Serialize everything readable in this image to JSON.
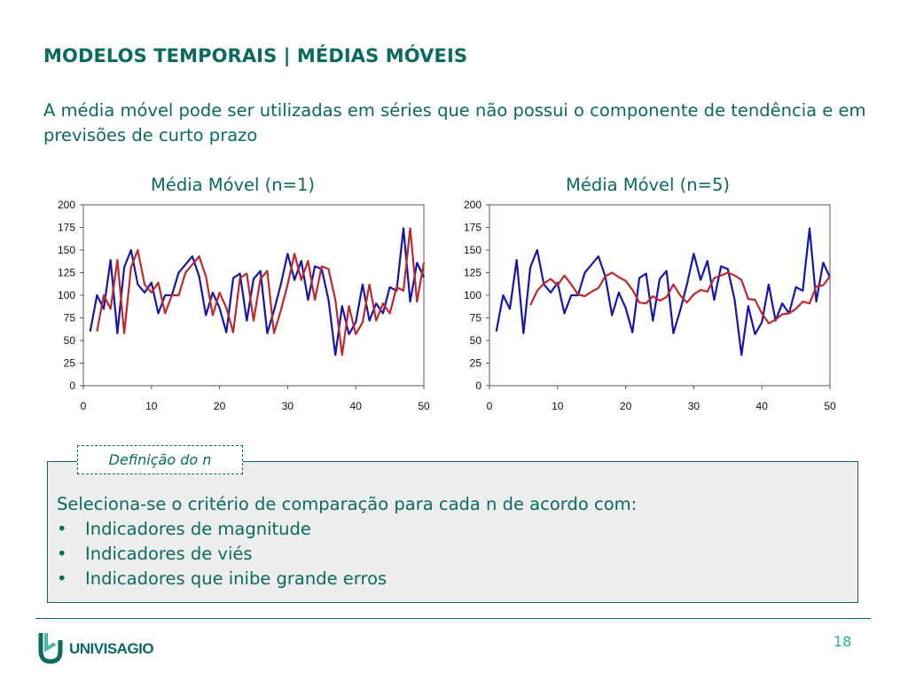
{
  "slide": {
    "title": "MODELOS TEMPORAIS | MÉDIAS MÓVEIS",
    "subtitle": "A média móvel pode ser utilizadas em séries que não possui o componente de tendência e em previsões de curto prazo",
    "page_number": "18",
    "colors": {
      "accent": "#0b6a5e",
      "page_number": "#2aa89a",
      "box_bg": "#eeeeee"
    }
  },
  "definition": {
    "tag": "Definição do n",
    "intro": "Seleciona-se o critério de comparação para cada n de acordo com:",
    "bullet_symbol": "•",
    "items": [
      "Indicadores de magnitude",
      "Indicadores de viés",
      "Indicadores que inibe grande erros"
    ]
  },
  "logo": {
    "text": "UNIVISAGIO",
    "icon": "univisagio-logo-icon"
  },
  "chart_data": [
    {
      "type": "line",
      "title": "Média Móvel (n=1)",
      "xlabel": "",
      "ylabel": "",
      "xlim": [
        0,
        50
      ],
      "ylim": [
        0,
        200
      ],
      "xticks": [
        0,
        10,
        20,
        30,
        40,
        50
      ],
      "yticks": [
        0,
        25,
        50,
        75,
        100,
        125,
        150,
        175,
        200
      ],
      "grid": false,
      "series": [
        {
          "color": "#1515b0",
          "x": [
            1,
            2,
            3,
            4,
            5,
            6,
            7,
            8,
            9,
            10,
            11,
            12,
            13,
            14,
            15,
            16,
            17,
            18,
            19,
            20,
            21,
            22,
            23,
            24,
            25,
            26,
            27,
            28,
            29,
            30,
            31,
            32,
            33,
            34,
            35,
            36,
            37,
            38,
            39,
            40,
            41,
            42,
            43,
            44,
            45,
            46,
            47,
            48,
            49,
            50
          ],
          "y": [
            60,
            100,
            85,
            139,
            58,
            131,
            150,
            112,
            103,
            114,
            80,
            100,
            100,
            125,
            134,
            143,
            121,
            78,
            103,
            86,
            59,
            119,
            124,
            72,
            118,
            127,
            58,
            83,
            112,
            146,
            117,
            138,
            95,
            132,
            129,
            95,
            34,
            88,
            57,
            70,
            112,
            72,
            91,
            80,
            109,
            105,
            174,
            93,
            136,
            120
          ]
        },
        {
          "color": "#c0282d",
          "x": [
            2,
            3,
            4,
            5,
            6,
            7,
            8,
            9,
            10,
            11,
            12,
            13,
            14,
            15,
            16,
            17,
            18,
            19,
            20,
            21,
            22,
            23,
            24,
            25,
            26,
            27,
            28,
            29,
            30,
            31,
            32,
            33,
            34,
            35,
            36,
            37,
            38,
            39,
            40,
            41,
            42,
            43,
            44,
            45,
            46,
            47,
            48,
            49,
            50
          ],
          "y": [
            60,
            100,
            85,
            139,
            58,
            131,
            150,
            112,
            103,
            114,
            80,
            100,
            100,
            125,
            134,
            143,
            121,
            78,
            103,
            86,
            59,
            119,
            124,
            72,
            118,
            127,
            58,
            83,
            112,
            146,
            117,
            138,
            95,
            132,
            129,
            95,
            34,
            88,
            57,
            70,
            112,
            72,
            91,
            80,
            109,
            105,
            174,
            93,
            136
          ]
        }
      ]
    },
    {
      "type": "line",
      "title": "Média Móvel (n=5)",
      "xlabel": "",
      "ylabel": "",
      "xlim": [
        0,
        50
      ],
      "ylim": [
        0,
        200
      ],
      "xticks": [
        0,
        10,
        20,
        30,
        40,
        50
      ],
      "yticks": [
        0,
        25,
        50,
        75,
        100,
        125,
        150,
        175,
        200
      ],
      "grid": false,
      "series": [
        {
          "color": "#1515b0",
          "x": [
            1,
            2,
            3,
            4,
            5,
            6,
            7,
            8,
            9,
            10,
            11,
            12,
            13,
            14,
            15,
            16,
            17,
            18,
            19,
            20,
            21,
            22,
            23,
            24,
            25,
            26,
            27,
            28,
            29,
            30,
            31,
            32,
            33,
            34,
            35,
            36,
            37,
            38,
            39,
            40,
            41,
            42,
            43,
            44,
            45,
            46,
            47,
            48,
            49,
            50
          ],
          "y": [
            60,
            100,
            85,
            139,
            58,
            131,
            150,
            112,
            103,
            114,
            80,
            100,
            100,
            125,
            134,
            143,
            121,
            78,
            103,
            86,
            59,
            119,
            124,
            72,
            118,
            127,
            58,
            83,
            112,
            146,
            117,
            138,
            95,
            132,
            129,
            95,
            34,
            88,
            57,
            70,
            112,
            72,
            91,
            80,
            109,
            105,
            174,
            93,
            136,
            120
          ]
        },
        {
          "color": "#c0282d",
          "x": [
            6,
            7,
            8,
            9,
            10,
            11,
            12,
            13,
            14,
            15,
            16,
            17,
            18,
            19,
            20,
            21,
            22,
            23,
            24,
            25,
            26,
            27,
            28,
            29,
            30,
            31,
            32,
            33,
            34,
            35,
            36,
            37,
            38,
            39,
            40,
            41,
            42,
            43,
            44,
            45,
            46,
            47,
            48,
            49,
            50
          ],
          "y": [
            89,
            105,
            113,
            118,
            111,
            122,
            112,
            101,
            99,
            104,
            108,
            121,
            125,
            120,
            116,
            106,
            92,
            91,
            99,
            94,
            98,
            112,
            100,
            92,
            101,
            106,
            104,
            119,
            122,
            125,
            122,
            117,
            96,
            95,
            80,
            69,
            73,
            79,
            80,
            85,
            93,
            91,
            110,
            111,
            121
          ]
        }
      ]
    }
  ]
}
